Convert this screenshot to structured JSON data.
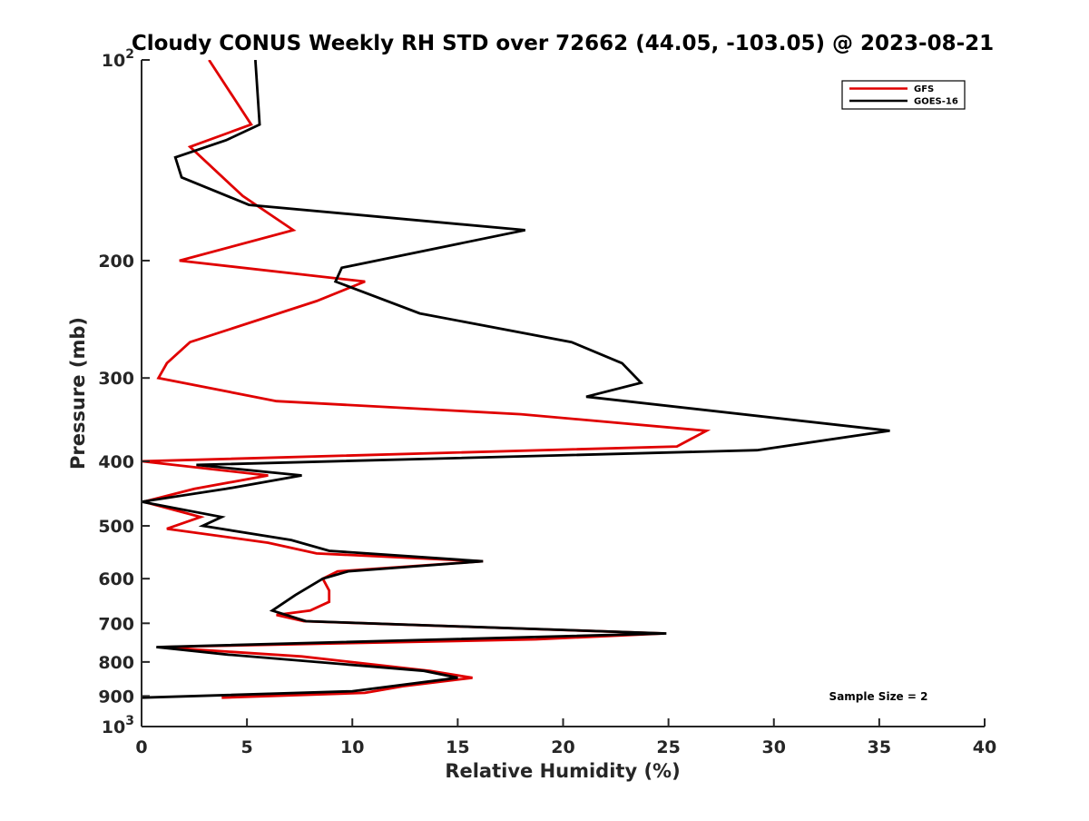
{
  "chart_data": {
    "type": "line",
    "title": "Cloudy CONUS Weekly RH STD over 72662 (44.05, -103.05) @ 2023-08-21",
    "xlabel": "Relative Humidity (%)",
    "ylabel": "Pressure (mb)",
    "xlim": [
      0,
      40
    ],
    "ylim": [
      100,
      1000
    ],
    "y_scale": "log",
    "y_reversed": true,
    "x_ticks": [
      0,
      5,
      10,
      15,
      20,
      25,
      30,
      35,
      40
    ],
    "x_tick_labels": [
      "0",
      "5",
      "10",
      "15",
      "20",
      "25",
      "30",
      "35",
      "40"
    ],
    "y_ticks": [
      200,
      300,
      400,
      500,
      600,
      700,
      800,
      900
    ],
    "y_tick_labels": [
      "200",
      "300",
      "400",
      "500",
      "600",
      "700",
      "800",
      "900"
    ],
    "y_end_ticks": [
      {
        "value": 100,
        "base": "10",
        "exp": "2"
      },
      {
        "value": 1000,
        "base": "10",
        "exp": "3"
      }
    ],
    "grid": false,
    "legend_position": "top-right",
    "annotation": "Sample Size = 2",
    "series": [
      {
        "name": "GFS",
        "color": "#e00000",
        "points": [
          [
            3.2,
            100
          ],
          [
            5.2,
            125
          ],
          [
            2.3,
            135
          ],
          [
            4.8,
            160
          ],
          [
            7.2,
            180
          ],
          [
            1.8,
            200
          ],
          [
            10.6,
            215
          ],
          [
            8.3,
            230
          ],
          [
            2.3,
            265
          ],
          [
            1.2,
            285
          ],
          [
            0.8,
            300
          ],
          [
            6.4,
            325
          ],
          [
            18.0,
            340
          ],
          [
            26.8,
            360
          ],
          [
            25.4,
            380
          ],
          [
            0.0,
            400
          ],
          [
            6.0,
            420
          ],
          [
            2.5,
            440
          ],
          [
            0.1,
            460
          ],
          [
            2.8,
            485
          ],
          [
            1.2,
            505
          ],
          [
            6.0,
            530
          ],
          [
            8.3,
            550
          ],
          [
            16.2,
            565
          ],
          [
            9.3,
            585
          ],
          [
            8.6,
            600
          ],
          [
            8.9,
            625
          ],
          [
            8.9,
            650
          ],
          [
            8.0,
            670
          ],
          [
            6.4,
            680
          ],
          [
            7.7,
            695
          ],
          [
            24.8,
            725
          ],
          [
            18.7,
            740
          ],
          [
            0.8,
            760
          ],
          [
            7.6,
            785
          ],
          [
            13.7,
            825
          ],
          [
            15.7,
            845
          ],
          [
            12.4,
            870
          ],
          [
            10.6,
            890
          ],
          [
            3.8,
            905
          ]
        ]
      },
      {
        "name": "GOES-16",
        "color": "#000000",
        "points": [
          [
            5.4,
            100
          ],
          [
            5.6,
            125
          ],
          [
            4.0,
            132
          ],
          [
            1.6,
            140
          ],
          [
            1.9,
            150
          ],
          [
            5.1,
            165
          ],
          [
            18.2,
            180
          ],
          [
            9.5,
            205
          ],
          [
            9.2,
            215
          ],
          [
            13.2,
            240
          ],
          [
            20.4,
            265
          ],
          [
            22.8,
            285
          ],
          [
            23.7,
            305
          ],
          [
            21.1,
            320
          ],
          [
            35.5,
            360
          ],
          [
            29.2,
            385
          ],
          [
            2.6,
            405
          ],
          [
            7.6,
            420
          ],
          [
            4.0,
            440
          ],
          [
            0.0,
            460
          ],
          [
            3.8,
            485
          ],
          [
            2.9,
            500
          ],
          [
            7.1,
            525
          ],
          [
            8.9,
            545
          ],
          [
            16.2,
            565
          ],
          [
            9.8,
            585
          ],
          [
            8.6,
            600
          ],
          [
            7.3,
            635
          ],
          [
            6.2,
            670
          ],
          [
            7.8,
            695
          ],
          [
            24.9,
            725
          ],
          [
            0.7,
            760
          ],
          [
            4.1,
            780
          ],
          [
            13.4,
            825
          ],
          [
            15.0,
            845
          ],
          [
            10.0,
            885
          ],
          [
            0.0,
            905
          ]
        ]
      }
    ]
  }
}
